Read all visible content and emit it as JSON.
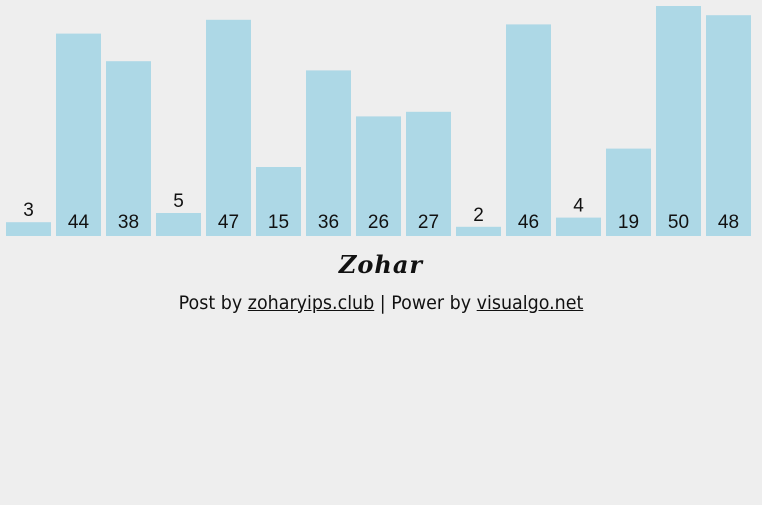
{
  "chart_data": {
    "type": "bar",
    "categories": [
      "3",
      "44",
      "38",
      "5",
      "47",
      "15",
      "36",
      "26",
      "27",
      "2",
      "46",
      "4",
      "19",
      "50",
      "48"
    ],
    "values": [
      3,
      44,
      38,
      5,
      47,
      15,
      36,
      26,
      27,
      2,
      46,
      4,
      19,
      50,
      48
    ],
    "ylim": [
      0,
      50
    ],
    "grid": false,
    "legend": "none",
    "bar_color": "#add8e6",
    "label_color": "#111111"
  },
  "footer": {
    "brand": "Zohar",
    "post_prefix": "Post by",
    "post_link": "zoharyips.club",
    "power_prefix": "| Power by",
    "power_link": "visualgo.net"
  }
}
